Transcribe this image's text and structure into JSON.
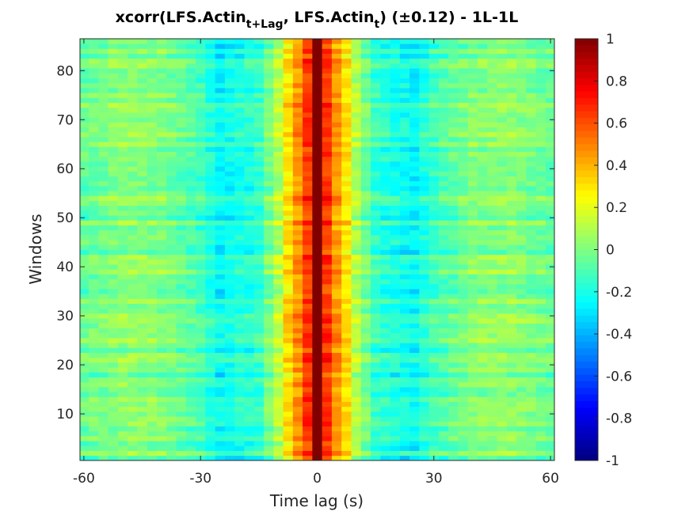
{
  "chart_data": {
    "type": "heatmap",
    "title": {
      "prefix": "xcorr(LFS.Actin",
      "sub1": "t+Lag",
      "middle": ", LFS.Actin",
      "sub2": "t",
      "suffix": ")  (±0.12) - 1L-1L"
    },
    "xlabel": "Time lag (s)",
    "ylabel": "Windows",
    "xlim": [
      -61,
      61
    ],
    "ylim": [
      0.5,
      86.5
    ],
    "x_ticks": [
      -60,
      -30,
      0,
      30,
      60
    ],
    "y_ticks": [
      10,
      20,
      30,
      40,
      50,
      60,
      70,
      80
    ],
    "colorbar": {
      "colormap": "jet",
      "clim": [
        -1,
        1
      ],
      "ticks": [
        "1",
        "0.8",
        "0.6",
        "0.4",
        "0.2",
        "0",
        "-0.2",
        "-0.4",
        "-0.6",
        "-0.8",
        "-1"
      ]
    },
    "rows": 86,
    "lag_step": 2.5,
    "lag_range": [
      -60,
      60
    ],
    "profile": {
      "lags": [
        -60,
        -50,
        -40,
        -30,
        -25,
        -20,
        -15,
        -10,
        -7.5,
        -5,
        -2.5,
        0,
        2.5,
        5,
        7.5,
        10,
        15,
        20,
        25,
        30,
        40,
        50,
        60
      ],
      "values": [
        -0.05,
        0.02,
        0.0,
        -0.12,
        -0.25,
        -0.2,
        -0.15,
        0.1,
        0.3,
        0.45,
        0.65,
        1.0,
        0.65,
        0.45,
        0.3,
        0.1,
        -0.15,
        -0.2,
        -0.25,
        -0.12,
        0.0,
        0.02,
        -0.05
      ]
    }
  }
}
